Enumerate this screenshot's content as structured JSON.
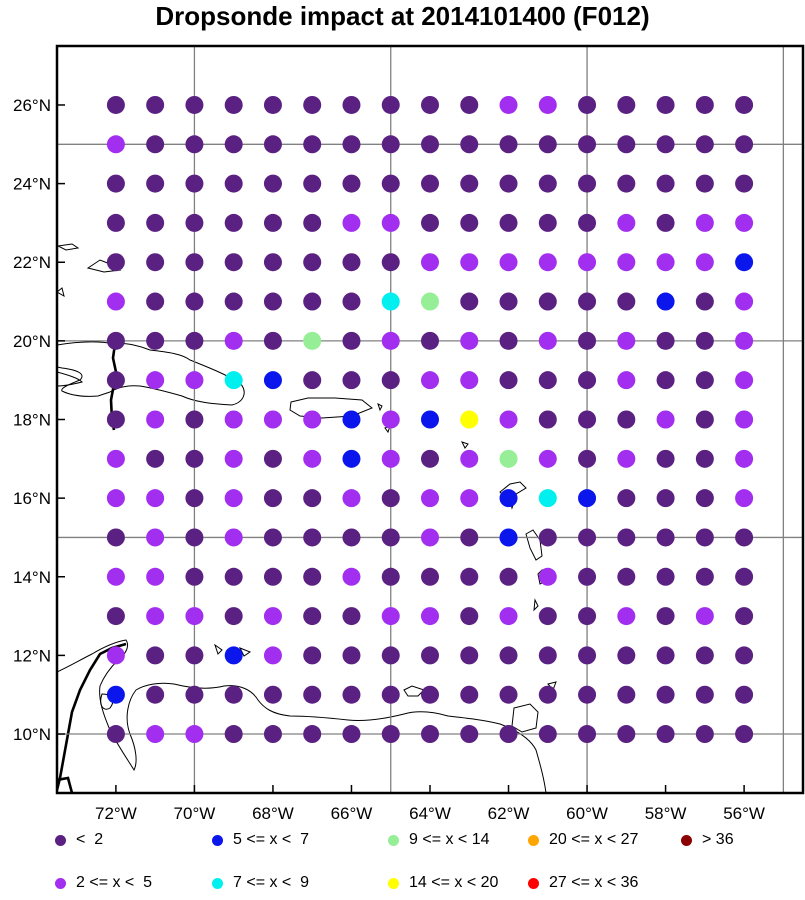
{
  "title": "Dropsonde impact at 2014101400 (F012)",
  "colors": {
    "c1": "#5b2182",
    "c2": "#a22ef0",
    "c3": "#0b16ed",
    "c4": "#00f0f0",
    "c5": "#96ee96",
    "c6": "#ffff00",
    "c7": "#ffa500",
    "c8": "#ff0000",
    "c9": "#8b0000"
  },
  "axes": {
    "lat_labels": [
      "26°N",
      "24°N",
      "22°N",
      "20°N",
      "18°N",
      "16°N",
      "14°N",
      "12°N",
      "10°N"
    ],
    "lon_labels": [
      "72°W",
      "70°W",
      "68°W",
      "66°W",
      "64°W",
      "62°W",
      "60°W",
      "58°W",
      "56°W"
    ],
    "lon_range": [
      -73.5,
      -54.5
    ],
    "lat_range": [
      8.5,
      27.5
    ]
  },
  "grid": {
    "lons": [
      -72,
      -71,
      -70,
      -69,
      -68,
      -67,
      -66,
      -65,
      -64,
      -63,
      -62,
      -61,
      -60,
      -59,
      -58,
      -57,
      -56
    ],
    "lats": [
      26,
      25,
      24,
      23,
      22,
      21,
      20,
      19,
      18,
      17,
      16,
      15,
      14,
      13,
      12,
      11,
      10
    ],
    "rows": [
      "11111111112211111",
      "21111111111111111",
      "11111111111111111",
      "11111122111112122",
      "11111111222222223",
      "21111114511111312",
      "11121512121212112",
      "12243111221112112",
      "12122232362111212",
      "21121232125212112",
      "22121121223431112",
      "12121111213111111",
      "22111121111211111",
      "12212112212112121",
      "21132111111111111",
      "31111111111111111",
      "12211111111111111"
    ],
    "overrides": [
      {
        "lat": 15,
        "lon": -62,
        "class": "c3"
      }
    ]
  },
  "legend": [
    {
      "label": "<  2",
      "color_key": "c1"
    },
    {
      "label": "5 <= x <  7",
      "color_key": "c3"
    },
    {
      "label": "9 <= x < 14",
      "color_key": "c5"
    },
    {
      "label": "20 <= x < 27",
      "color_key": "c7"
    },
    {
      "label": "> 36",
      "color_key": "c9"
    },
    {
      "label": "2 <= x <  5",
      "color_key": "c2"
    },
    {
      "label": "7 <= x <  9",
      "color_key": "c4"
    },
    {
      "label": "14 <= x < 20",
      "color_key": "c6"
    },
    {
      "label": "27 <= x < 36",
      "color_key": "c8"
    }
  ]
}
